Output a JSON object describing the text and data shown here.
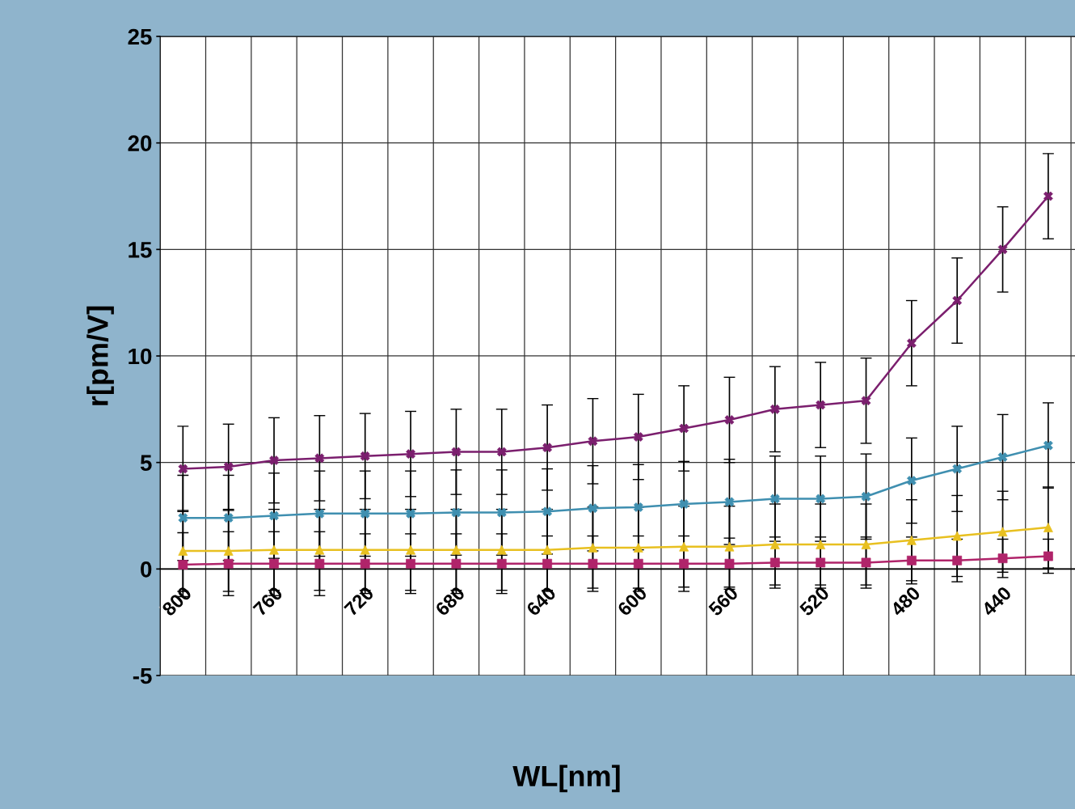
{
  "chart_data": {
    "type": "line",
    "xlabel": "WL[nm]",
    "ylabel": "r[pm/V]",
    "categories": [
      "800",
      null,
      "760",
      null,
      "720",
      null,
      "680",
      null,
      "640",
      null,
      "600",
      null,
      "560",
      null,
      "520",
      null,
      "480",
      null,
      "440",
      null
    ],
    "ylim": [
      -5,
      25
    ],
    "yticks": [
      -5,
      0,
      5,
      10,
      15,
      20,
      25
    ],
    "grid": true,
    "legend": false,
    "line_style": "solid",
    "series": [
      {
        "color": "#7b1f6e",
        "marker": "cross",
        "values": [
          4.7,
          4.8,
          5.1,
          5.2,
          5.3,
          5.4,
          5.5,
          5.5,
          5.7,
          6.0,
          6.2,
          6.6,
          7.0,
          7.5,
          7.7,
          7.9,
          10.6,
          12.6,
          15.0,
          17.5
        ],
        "errors": [
          2,
          2,
          2,
          2,
          2,
          2,
          2,
          2,
          2,
          2,
          2,
          2,
          2,
          2,
          2,
          2,
          2,
          2,
          2,
          2
        ]
      },
      {
        "color": "#3f8fb0",
        "marker": "cross",
        "values": [
          2.4,
          2.4,
          2.5,
          2.6,
          2.6,
          2.6,
          2.65,
          2.65,
          2.7,
          2.85,
          2.9,
          3.05,
          3.15,
          3.3,
          3.3,
          3.4,
          4.15,
          4.7,
          5.25,
          5.8
        ],
        "errors": [
          2,
          2,
          2,
          2,
          2,
          2,
          2,
          2,
          2,
          2,
          2,
          2,
          2,
          2,
          2,
          2,
          2,
          2,
          2,
          2
        ]
      },
      {
        "color": "#e8c020",
        "marker": "triangle",
        "values": [
          0.85,
          0.85,
          0.9,
          0.9,
          0.9,
          0.9,
          0.9,
          0.9,
          0.9,
          1.0,
          1.0,
          1.05,
          1.05,
          1.15,
          1.15,
          1.15,
          1.35,
          1.55,
          1.75,
          1.95
        ],
        "errors": [
          1.9,
          1.9,
          1.9,
          1.9,
          1.9,
          1.9,
          1.9,
          1.9,
          1.9,
          1.9,
          1.9,
          1.9,
          1.9,
          1.9,
          1.9,
          1.9,
          1.9,
          1.9,
          1.9,
          1.9
        ]
      },
      {
        "color": "#b0246a",
        "marker": "square",
        "values": [
          0.2,
          0.25,
          0.25,
          0.25,
          0.25,
          0.25,
          0.25,
          0.25,
          0.25,
          0.25,
          0.25,
          0.25,
          0.25,
          0.3,
          0.3,
          0.3,
          0.4,
          0.4,
          0.5,
          0.6
        ],
        "errors": [
          1.5,
          1.5,
          1.5,
          1.5,
          1.4,
          1.4,
          1.4,
          1.4,
          1.3,
          1.3,
          1.3,
          1.3,
          1.2,
          1.2,
          1.2,
          1.2,
          1.1,
          1.0,
          0.9,
          0.8
        ]
      }
    ]
  }
}
